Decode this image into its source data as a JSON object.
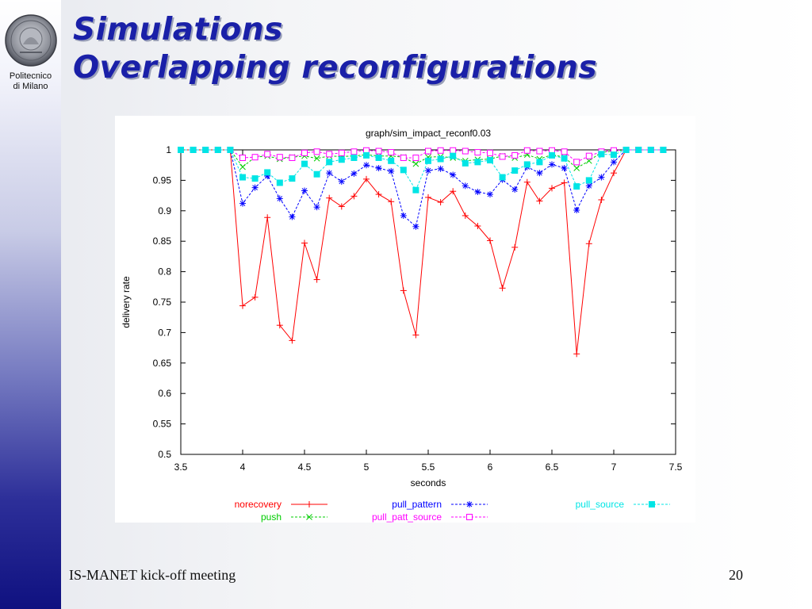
{
  "logo": {
    "caption_line1": "Politecnico",
    "caption_line2": "di Milano",
    "seal_text": "MILANO"
  },
  "title": {
    "line1": "Simulations",
    "line2": "Overlapping reconfigurations"
  },
  "footer": {
    "left": "IS-MANET kick-off meeting",
    "page_number": "20"
  },
  "chart_data": {
    "type": "line",
    "title": "graph/sim_impact_reconf0.03",
    "xlabel": "seconds",
    "ylabel": "delivery rate",
    "xlim": [
      3.5,
      7.5
    ],
    "ylim": [
      0.5,
      1
    ],
    "x_ticks": [
      "3.5",
      "4",
      "4.5",
      "5",
      "5.5",
      "6",
      "6.5",
      "7",
      "7.5"
    ],
    "y_ticks": [
      "0.5",
      "0.55",
      "0.6",
      "0.65",
      "0.7",
      "0.75",
      "0.8",
      "0.85",
      "0.9",
      "0.95",
      "1"
    ],
    "grid": false,
    "legend_position": "bottom",
    "x": [
      3.5,
      3.6,
      3.7,
      3.8,
      3.9,
      4.0,
      4.1,
      4.2,
      4.3,
      4.4,
      4.5,
      4.6,
      4.7,
      4.8,
      4.9,
      5.0,
      5.1,
      5.2,
      5.3,
      5.4,
      5.5,
      5.6,
      5.7,
      5.8,
      5.9,
      6.0,
      6.1,
      6.2,
      6.3,
      6.4,
      6.5,
      6.6,
      6.7,
      6.8,
      6.9,
      7.0,
      7.1,
      7.2,
      7.3,
      7.4
    ],
    "series": [
      {
        "name": "norecovery",
        "color": "#ff0000",
        "marker": "plus",
        "values": [
          1,
          1,
          1,
          1,
          1,
          0.744,
          0.758,
          0.889,
          0.712,
          0.687,
          0.847,
          0.787,
          0.921,
          0.907,
          0.924,
          0.952,
          0.927,
          0.915,
          0.769,
          0.696,
          0.922,
          0.914,
          0.932,
          0.892,
          0.875,
          0.851,
          0.773,
          0.84,
          0.947,
          0.916,
          0.937,
          0.946,
          0.665,
          0.846,
          0.918,
          0.962,
          1,
          1,
          1,
          1
        ]
      },
      {
        "name": "push",
        "color": "#00cc00",
        "marker": "x",
        "values": [
          1,
          1,
          1,
          1,
          1,
          0.972,
          0.988,
          0.99,
          0.985,
          0.988,
          0.99,
          0.986,
          0.99,
          0.989,
          0.99,
          0.992,
          0.99,
          0.99,
          0.988,
          0.977,
          0.988,
          0.989,
          0.987,
          0.982,
          0.984,
          0.985,
          0.99,
          0.987,
          0.992,
          0.985,
          0.992,
          0.988,
          0.97,
          0.982,
          0.996,
          0.998,
          1,
          1,
          1,
          1
        ]
      },
      {
        "name": "pull_pattern",
        "color": "#0000ff",
        "marker": "star",
        "values": [
          1,
          1,
          1,
          1,
          1,
          0.912,
          0.938,
          0.957,
          0.92,
          0.89,
          0.933,
          0.906,
          0.962,
          0.948,
          0.961,
          0.975,
          0.97,
          0.965,
          0.892,
          0.874,
          0.966,
          0.969,
          0.959,
          0.941,
          0.931,
          0.927,
          0.951,
          0.935,
          0.972,
          0.962,
          0.976,
          0.97,
          0.901,
          0.941,
          0.955,
          0.98,
          1,
          1,
          1,
          1
        ]
      },
      {
        "name": "pull_patt_source",
        "color": "#ff00ff",
        "marker": "square-open",
        "values": [
          1,
          1,
          1,
          1,
          1,
          0.987,
          0.988,
          0.993,
          0.988,
          0.987,
          0.995,
          0.997,
          0.993,
          0.995,
          0.997,
          0.999,
          0.998,
          0.996,
          0.987,
          0.987,
          0.998,
          0.999,
          0.999,
          0.998,
          0.996,
          0.995,
          0.989,
          0.991,
          0.999,
          0.998,
          0.999,
          0.997,
          0.98,
          0.99,
          0.997,
          0.999,
          1,
          1,
          1,
          1
        ]
      },
      {
        "name": "pull_source",
        "color": "#00e5e5",
        "marker": "square-filled",
        "values": [
          1,
          1,
          1,
          1,
          1,
          0.955,
          0.953,
          0.963,
          0.946,
          0.953,
          0.977,
          0.96,
          0.98,
          0.984,
          0.987,
          0.991,
          0.987,
          0.982,
          0.967,
          0.934,
          0.982,
          0.985,
          0.99,
          0.978,
          0.98,
          0.983,
          0.955,
          0.966,
          0.976,
          0.98,
          0.991,
          0.986,
          0.94,
          0.95,
          0.993,
          0.992,
          1,
          1,
          1,
          1
        ]
      }
    ]
  }
}
